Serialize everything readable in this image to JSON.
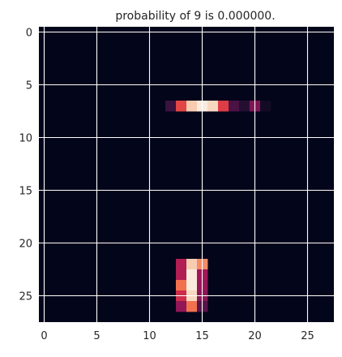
{
  "chart_data": {
    "type": "heatmap",
    "title": "probability of  9 is  0.000000.",
    "xlabel": "",
    "ylabel": "",
    "shape": [
      28,
      28
    ],
    "xlim": [
      -0.5,
      27.5
    ],
    "ylim": [
      27.5,
      -0.5
    ],
    "x_ticks": [
      "0",
      "5",
      "10",
      "15",
      "20",
      "25"
    ],
    "y_ticks": [
      "0",
      "5",
      "10",
      "15",
      "20",
      "25"
    ],
    "grid": true,
    "colormap": "rocket",
    "background_color": "#03051a",
    "value_range": [
      0,
      1
    ],
    "nonzero_cells": [
      {
        "row": 7,
        "col": 12,
        "value": 0.18
      },
      {
        "row": 7,
        "col": 13,
        "value": 0.62
      },
      {
        "row": 7,
        "col": 14,
        "value": 0.92
      },
      {
        "row": 7,
        "col": 15,
        "value": 1.0
      },
      {
        "row": 7,
        "col": 16,
        "value": 0.95
      },
      {
        "row": 7,
        "col": 17,
        "value": 0.6
      },
      {
        "row": 7,
        "col": 18,
        "value": 0.22
      },
      {
        "row": 7,
        "col": 19,
        "value": 0.12
      },
      {
        "row": 7,
        "col": 20,
        "value": 0.35
      },
      {
        "row": 7,
        "col": 21,
        "value": 0.06
      },
      {
        "row": 22,
        "col": 13,
        "value": 0.48
      },
      {
        "row": 22,
        "col": 14,
        "value": 0.92
      },
      {
        "row": 22,
        "col": 15,
        "value": 0.78
      },
      {
        "row": 23,
        "col": 13,
        "value": 0.48
      },
      {
        "row": 23,
        "col": 14,
        "value": 1.0
      },
      {
        "row": 23,
        "col": 15,
        "value": 0.45
      },
      {
        "row": 24,
        "col": 13,
        "value": 0.72
      },
      {
        "row": 24,
        "col": 14,
        "value": 1.0
      },
      {
        "row": 24,
        "col": 15,
        "value": 0.42
      },
      {
        "row": 25,
        "col": 13,
        "value": 0.55
      },
      {
        "row": 25,
        "col": 14,
        "value": 0.95
      },
      {
        "row": 25,
        "col": 15,
        "value": 0.38
      },
      {
        "row": 26,
        "col": 13,
        "value": 0.4
      },
      {
        "row": 26,
        "col": 14,
        "value": 0.72
      },
      {
        "row": 26,
        "col": 15,
        "value": 0.25
      }
    ]
  }
}
